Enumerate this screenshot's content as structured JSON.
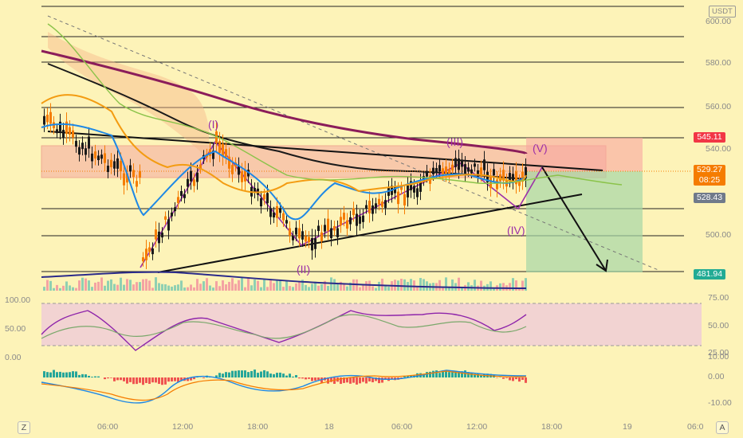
{
  "app": {
    "unit_label": "USDT"
  },
  "price_axis": {
    "ticks": [
      "600.00",
      "580.00",
      "560.00",
      "540.00",
      "500.00"
    ],
    "tags": {
      "high": "545.11",
      "current": "529.27",
      "countdown": "08:25",
      "ref": "528.43",
      "target": "481.94"
    }
  },
  "rsi_axis": {
    "left_ticks": [
      "100.00",
      "50.00",
      "0.00"
    ],
    "right_ticks": [
      "75.00",
      "50.00",
      "25.00"
    ]
  },
  "macd_axis": {
    "right_ticks": [
      "10.00",
      "0.00",
      "-10.00"
    ]
  },
  "time_axis": {
    "ticks": [
      "06:00",
      "12:00",
      "18:00",
      "18",
      "06:00",
      "12:00",
      "18:00",
      "19",
      "06:0"
    ]
  },
  "corner": {
    "left": "Z",
    "right": "A"
  },
  "wave_labels": [
    "(I)",
    "(II)",
    "(III)",
    "(IV)",
    "(V)"
  ],
  "colors": {
    "background": "#fdf3b8",
    "ma_long": "#8b1d5a",
    "ma_black": "#1a1a1a",
    "wave": "#9c2fa8",
    "up_candle": "#f57c00",
    "down_candle": "#1a1a1a",
    "rsi_band": "#e9b8e8",
    "target_zone": "#a5d6a7",
    "stop_zone": "#f8a7a0"
  }
}
